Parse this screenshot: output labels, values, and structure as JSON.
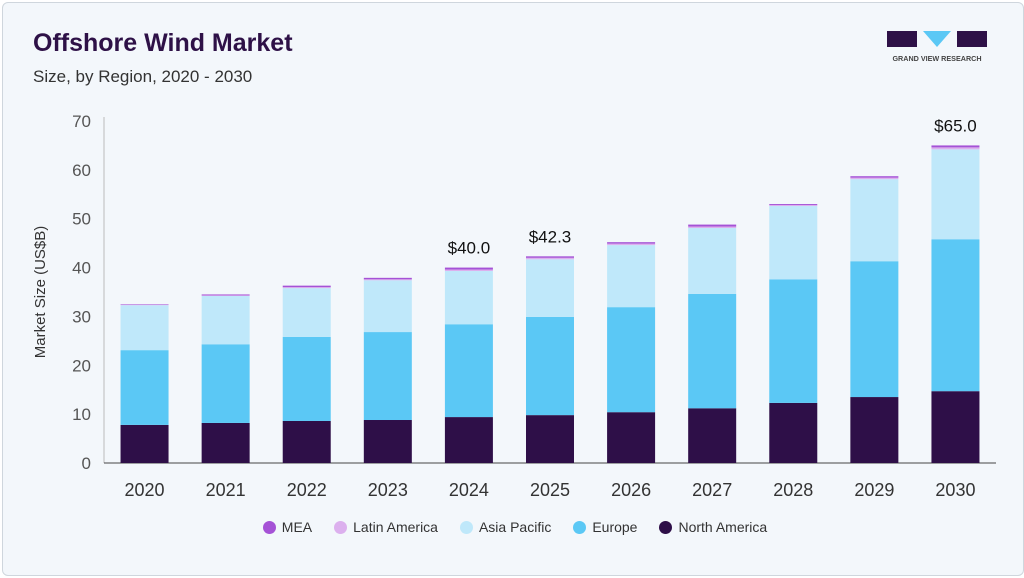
{
  "title": "Offshore Wind Market",
  "subtitle": "Size, by Region, 2020 - 2030",
  "logo_text": "GRAND VIEW RESEARCH",
  "chart_data": {
    "type": "bar",
    "stacked": true,
    "title": "Offshore Wind Market",
    "ylabel": "Market Size (US$B)",
    "xlabel": "",
    "ylim": [
      0,
      70
    ],
    "yticks": [
      0,
      10,
      20,
      30,
      40,
      50,
      60,
      70
    ],
    "categories": [
      "2020",
      "2021",
      "2022",
      "2023",
      "2024",
      "2025",
      "2026",
      "2027",
      "2028",
      "2029",
      "2030"
    ],
    "series": [
      {
        "name": "North America",
        "color": "#2e0f48",
        "values": [
          7.8,
          8.2,
          8.6,
          8.8,
          9.4,
          9.8,
          10.4,
          11.2,
          12.3,
          13.5,
          14.7
        ]
      },
      {
        "name": "Europe",
        "color": "#5bc8f5",
        "values": [
          15.3,
          16.1,
          17.2,
          18.0,
          19.0,
          20.1,
          21.5,
          23.4,
          25.3,
          27.8,
          31.1
        ]
      },
      {
        "name": "Asia Pacific",
        "color": "#bfe8fa",
        "values": [
          9.2,
          9.9,
          10.0,
          10.6,
          10.9,
          11.8,
          12.7,
          13.5,
          15.0,
          16.8,
          18.4
        ]
      },
      {
        "name": "Latin America",
        "color": "#dcb0ee",
        "values": [
          0.1,
          0.1,
          0.2,
          0.2,
          0.3,
          0.3,
          0.3,
          0.3,
          0.2,
          0.3,
          0.4
        ]
      },
      {
        "name": "MEA",
        "color": "#a552d6",
        "values": [
          0.1,
          0.2,
          0.3,
          0.3,
          0.4,
          0.3,
          0.3,
          0.4,
          0.2,
          0.3,
          0.4
        ]
      }
    ],
    "data_labels": {
      "2024": "$40.0",
      "2025": "$42.3",
      "2030": "$65.0"
    },
    "legend_order": [
      "MEA",
      "Latin America",
      "Asia Pacific",
      "Europe",
      "North America"
    ],
    "legend_position": "bottom",
    "grid": false
  }
}
